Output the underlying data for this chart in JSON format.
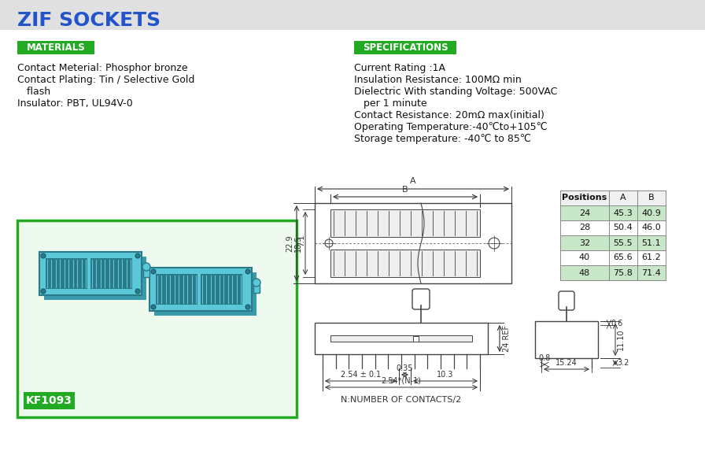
{
  "title": "ZIF SOCKETS",
  "title_color": "#2255CC",
  "header_bg": "#DDDDDD",
  "bg_color": "#FFFFFF",
  "green_label_bg": "#22AA22",
  "green_label_text": "#FFFFFF",
  "materials_label": "MATERIALS",
  "specifications_label": "SPECIFICATIONS",
  "materials_lines": [
    "Contact Meterial: Phosphor bronze",
    "Contact Plating: Tin / Selective Gold",
    "   flash",
    "Insulator: PBT, UL94V-0"
  ],
  "spec_lines": [
    "Current Rating :1A",
    "Insulation Resistance: 100MΩ min",
    "Dielectric With standing Voltage: 500VAC",
    "   per 1 minute",
    "Contact Resistance: 20mΩ max(initial)",
    "Operating Temperature:-40℃to+105℃",
    "Storage temperature: -40℃ to 85℃"
  ],
  "table_headers": [
    "Positions",
    "A",
    "B"
  ],
  "table_rows": [
    [
      "24",
      "45.3",
      "40.9"
    ],
    [
      "28",
      "50.4",
      "46.0"
    ],
    [
      "32",
      "55.5",
      "51.1"
    ],
    [
      "40",
      "65.6",
      "61.2"
    ],
    [
      "48",
      "75.8",
      "71.4"
    ]
  ],
  "table_highlight_rows": [
    0,
    2,
    4
  ],
  "table_highlight_color": "#C8E6C8",
  "product_code": "KF1093",
  "product_code_color": "#FFFFFF",
  "product_box_color": "#22AA22",
  "line_color": "#444444",
  "dim_color": "#333333"
}
